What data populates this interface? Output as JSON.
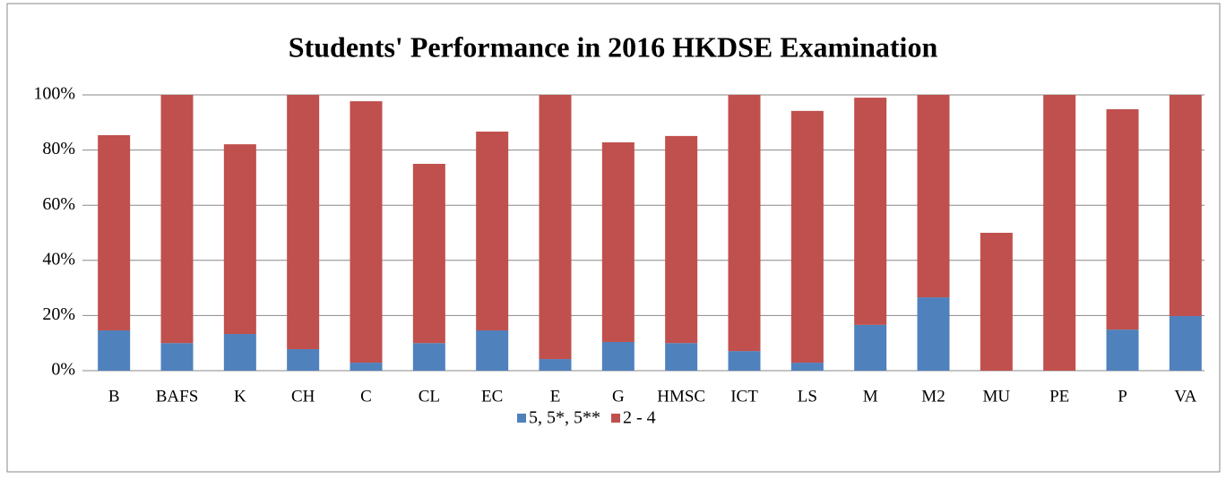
{
  "chart_data": {
    "type": "stacked_bar",
    "title": "Students' Performance in 2016 HKDSE Examination",
    "categories": [
      "B",
      "BAFS",
      "K",
      "CH",
      "C",
      "CL",
      "EC",
      "E",
      "G",
      "HMSC",
      "ICT",
      "LS",
      "M",
      "M2",
      "MU",
      "PE",
      "P",
      "VA"
    ],
    "series": [
      {
        "name": "5, 5*, 5**",
        "color": "#4f81bd",
        "values": [
          14.6,
          10,
          13.3,
          7.8,
          2.9,
          10,
          14.6,
          4.2,
          10.4,
          10,
          7.1,
          2.9,
          16.6,
          26.6,
          0,
          0,
          14.9,
          19.8
        ]
      },
      {
        "name": "2 - 4",
        "color": "#c0504d",
        "values": [
          70.8,
          90,
          68.8,
          92.2,
          94.8,
          65,
          72.1,
          95.8,
          72.4,
          75.1,
          92.9,
          91.3,
          82.4,
          73.4,
          50,
          100,
          79.9,
          80.2
        ]
      }
    ],
    "ylim": [
      0,
      100
    ],
    "yticks": [
      {
        "value": 0,
        "label": "0%"
      },
      {
        "value": 20,
        "label": "20%"
      },
      {
        "value": 40,
        "label": "40%"
      },
      {
        "value": 60,
        "label": "60%"
      },
      {
        "value": 80,
        "label": "80%"
      },
      {
        "value": 100,
        "label": "100%"
      }
    ],
    "grid": true,
    "legend": "bottom"
  }
}
